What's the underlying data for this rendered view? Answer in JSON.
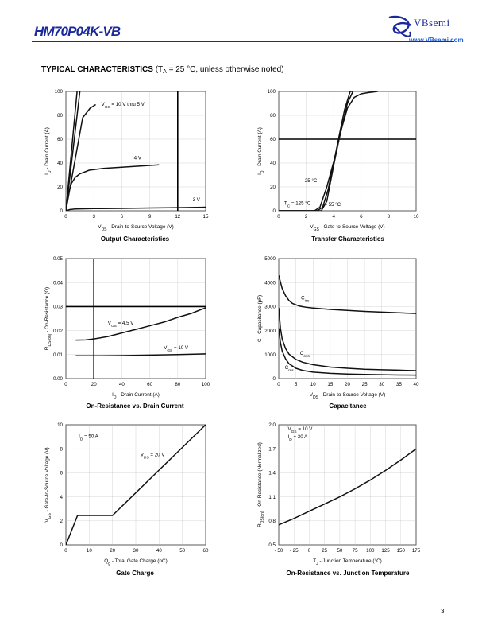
{
  "header": {
    "part_number": "HM70P04K-VB",
    "brand": "VBsemi",
    "website": "www.VBsemi.com"
  },
  "section": {
    "title": "TYPICAL CHARACTERISTICS",
    "cond_prefix": "(T",
    "cond_sub": "A",
    "cond_suffix": " = 25 °C, unless otherwise noted)"
  },
  "page_number": "3",
  "chart_data": [
    {
      "id": "output",
      "type": "line",
      "title": "Output Characteristics",
      "xlabel": "V_DS - Drain-to-Source Voltage (V)",
      "ylabel": "I_D - Drain Current (A)",
      "xlim": [
        0,
        15
      ],
      "ylim": [
        0,
        100
      ],
      "xticks": [
        0,
        3,
        6,
        9,
        12,
        15
      ],
      "yticks": [
        0,
        20,
        40,
        60,
        80,
        100
      ],
      "vlines": [
        12
      ],
      "hlines": [],
      "series": [
        {
          "name": "VGS = 10 V thru 5 V a",
          "x": [
            0,
            1.2
          ],
          "y": [
            0,
            100
          ]
        },
        {
          "name": "VGS = 10 V thru 5 V b",
          "x": [
            0,
            1.5
          ],
          "y": [
            0,
            100
          ]
        },
        {
          "name": "VGS = 10 V thru 5 V c",
          "x": [
            0,
            1.8,
            2.6,
            3.2
          ],
          "y": [
            0,
            78,
            86,
            89
          ]
        },
        {
          "name": "4 V",
          "x": [
            0,
            0.3,
            0.6,
            1.0,
            1.5,
            2.5,
            4,
            6,
            8,
            10
          ],
          "y": [
            0,
            16,
            23,
            28,
            31,
            34,
            35.5,
            36.5,
            37.5,
            38.5
          ]
        },
        {
          "name": "3 V",
          "x": [
            0,
            0.4,
            1,
            3,
            6,
            9,
            12,
            15
          ],
          "y": [
            0,
            1,
            1.5,
            1.8,
            2,
            2.3,
            2.6,
            3
          ]
        }
      ],
      "annotations": [
        {
          "text": "V",
          "sub": "GS",
          "rest": " = 10 V thru 5 V",
          "x": 3.8,
          "y": 88
        },
        {
          "text": "4 V",
          "sub": "",
          "rest": "",
          "x": 7.3,
          "y": 43
        },
        {
          "text": "3 V",
          "sub": "",
          "rest": "",
          "x": 13.6,
          "y": 8
        }
      ]
    },
    {
      "id": "transfer",
      "type": "line",
      "title": "Transfer Characteristics",
      "xlabel": "V_GS - Gate-to-Source Voltage (V)",
      "ylabel": "I_D - Drain Current (A)",
      "xlim": [
        0,
        10
      ],
      "ylim": [
        0,
        100
      ],
      "xticks": [
        0,
        2,
        4,
        6,
        8,
        10
      ],
      "yticks": [
        0,
        20,
        40,
        60,
        80,
        100
      ],
      "vlines": [],
      "hlines": [
        60
      ],
      "series": [
        {
          "name": "TC = 25 °C",
          "x": [
            0,
            2.8,
            3.2,
            3.6,
            4.0,
            4.4,
            4.8,
            5.2,
            5.4
          ],
          "y": [
            0,
            0,
            3,
            18,
            40,
            63,
            85,
            100,
            100
          ]
        },
        {
          "name": "TC = 125 °C",
          "x": [
            0,
            2.6,
            3.0,
            3.5,
            4.0,
            4.5,
            5.0,
            5.4
          ],
          "y": [
            0,
            0,
            3,
            20,
            41,
            65,
            90,
            100
          ]
        },
        {
          "name": "TC = -55 °C",
          "x": [
            0,
            3.1,
            3.5,
            4.0,
            4.5,
            5.0,
            5.5,
            6.0,
            6.5,
            7.2
          ],
          "y": [
            0,
            0,
            8,
            38,
            66,
            86,
            95,
            98,
            99,
            100
          ]
        }
      ],
      "annotations": [
        {
          "text": "25 °C",
          "sub": "",
          "rest": "",
          "x": 1.9,
          "y": 24
        },
        {
          "text": "T",
          "sub": "C",
          "rest": " = 125 °C",
          "x": 0.4,
          "y": 5
        },
        {
          "text": "- 55 °C",
          "sub": "",
          "rest": "",
          "x": 3.4,
          "y": 4
        }
      ]
    },
    {
      "id": "ron_vs_id",
      "type": "line",
      "title": "On-Resistance vs. Drain Current",
      "xlabel": "I_D - Drain Current (A)",
      "ylabel": "R_DS(on) - On-Resistance (Ω)",
      "xlim": [
        0,
        100
      ],
      "ylim": [
        0,
        0.05
      ],
      "xticks": [
        0,
        20,
        40,
        60,
        80,
        100
      ],
      "yticks": [
        0.0,
        0.01,
        0.02,
        0.03,
        0.04,
        0.05
      ],
      "ytick_decimals": 2,
      "vlines": [
        20
      ],
      "hlines": [
        0.03
      ],
      "series": [
        {
          "name": "VGS = 4.5 V",
          "x": [
            7,
            14,
            20,
            30,
            40,
            50,
            60,
            70,
            80,
            90,
            100
          ],
          "y": [
            0.016,
            0.0161,
            0.0165,
            0.0175,
            0.019,
            0.0205,
            0.022,
            0.0235,
            0.0255,
            0.0272,
            0.0295
          ]
        },
        {
          "name": "VGS = 10 V",
          "x": [
            7,
            20,
            40,
            60,
            80,
            100
          ],
          "y": [
            0.0095,
            0.0095,
            0.0096,
            0.0098,
            0.01,
            0.0103
          ]
        }
      ],
      "annotations": [
        {
          "text": "V",
          "sub": "GS",
          "rest": " = 4.5 V",
          "x": 30,
          "y": 0.0225
        },
        {
          "text": "V",
          "sub": "GS",
          "rest": " = 10 V",
          "x": 70,
          "y": 0.0122
        }
      ]
    },
    {
      "id": "capacitance",
      "type": "line",
      "title": "Capacitance",
      "xlabel": "V_DS - Drain-to-Source Voltage (V)",
      "ylabel": "C - Capacitance (pF)",
      "xlim": [
        0,
        40
      ],
      "ylim": [
        0,
        5000
      ],
      "xticks": [
        0,
        5,
        10,
        15,
        20,
        25,
        30,
        35,
        40
      ],
      "yticks": [
        0,
        1000,
        2000,
        3000,
        4000,
        5000
      ],
      "vlines": [],
      "hlines": [],
      "series": [
        {
          "name": "Ciss",
          "x": [
            0,
            1,
            2,
            3,
            4,
            6,
            8,
            10,
            15,
            20,
            25,
            30,
            35,
            40
          ],
          "y": [
            4300,
            3750,
            3450,
            3250,
            3130,
            3020,
            2970,
            2940,
            2880,
            2840,
            2800,
            2770,
            2740,
            2710
          ]
        },
        {
          "name": "Coss",
          "x": [
            0,
            0.5,
            1,
            2,
            3,
            5,
            7,
            10,
            15,
            20,
            25,
            30,
            35,
            40
          ],
          "y": [
            2950,
            2100,
            1650,
            1250,
            1020,
            800,
            680,
            580,
            480,
            430,
            390,
            370,
            350,
            330
          ]
        },
        {
          "name": "Crss",
          "x": [
            0,
            0.5,
            1,
            2,
            3,
            5,
            7,
            10,
            15,
            20,
            25,
            30,
            35,
            40
          ],
          "y": [
            2100,
            1500,
            1150,
            820,
            620,
            430,
            340,
            270,
            220,
            190,
            175,
            160,
            150,
            145
          ]
        }
      ],
      "annotations": [
        {
          "text": "C",
          "sub": "iss",
          "rest": "",
          "x": 6.5,
          "y": 3300
        },
        {
          "text": "C",
          "sub": "oss",
          "rest": "",
          "x": 6.2,
          "y": 1000
        },
        {
          "text": "C",
          "sub": "rss",
          "rest": "",
          "x": 1.8,
          "y": 400
        }
      ]
    },
    {
      "id": "gate_charge",
      "type": "line",
      "title": "Gate Charge",
      "xlabel": "Q_g - Total Gate Charge (nC)",
      "ylabel": "V_GS - Gate-to-Source Voltage (V)",
      "xlim": [
        0,
        60
      ],
      "ylim": [
        0,
        10
      ],
      "xticks": [
        0,
        10,
        20,
        30,
        40,
        50,
        60
      ],
      "yticks": [
        0,
        2,
        4,
        6,
        8,
        10
      ],
      "vlines": [],
      "hlines": [],
      "series": [
        {
          "name": "VGS",
          "x": [
            0,
            5,
            20,
            60
          ],
          "y": [
            0,
            2.45,
            2.45,
            10
          ]
        }
      ],
      "annotations": [
        {
          "text": "I",
          "sub": "D",
          "rest": " = 50 A",
          "x": 5.5,
          "y": 8.9
        },
        {
          "text": "V",
          "sub": "DS",
          "rest": " = 20 V",
          "x": 32,
          "y": 7.4
        }
      ]
    },
    {
      "id": "ron_vs_tj",
      "type": "line",
      "title": "On-Resistance vs. Junction Temperature",
      "xlabel": "T_J - Junction Temperature (°C)",
      "ylabel": "R_DS(on) - On-Resistance (Normalized)",
      "xlim": [
        -50,
        175
      ],
      "ylim": [
        0.5,
        2.0
      ],
      "xticks": [
        -50,
        -25,
        0,
        25,
        50,
        75,
        100,
        125,
        150,
        175
      ],
      "xtick_labels": [
        "- 50",
        "- 25",
        "0",
        "25",
        "50",
        "75",
        "100",
        "125",
        "150",
        "175"
      ],
      "yticks": [
        0.5,
        0.8,
        1.1,
        1.4,
        1.7,
        2.0
      ],
      "ytick_decimals": 1,
      "vlines": [],
      "hlines": [],
      "series": [
        {
          "name": "normalized RDS(on)",
          "x": [
            -50,
            -25,
            0,
            25,
            50,
            75,
            100,
            125,
            150,
            175
          ],
          "y": [
            0.75,
            0.83,
            0.92,
            1.01,
            1.1,
            1.2,
            1.31,
            1.43,
            1.56,
            1.7
          ]
        }
      ],
      "annotations": [
        {
          "text": "V",
          "sub": "GS",
          "rest": " = 10 V",
          "x": -35,
          "y": 1.93
        },
        {
          "text": "I",
          "sub": "D",
          "rest": " = 30 A",
          "x": -35,
          "y": 1.83
        }
      ]
    }
  ]
}
